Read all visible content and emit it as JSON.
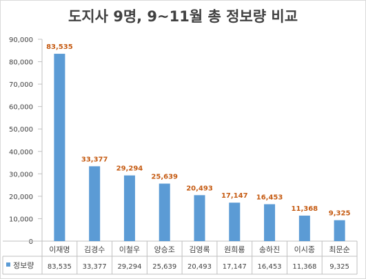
{
  "chart_data": {
    "type": "bar",
    "title": "도지사 9명, 9~11월 총 정보량 비교",
    "categories": [
      "이재명",
      "김경수",
      "이철우",
      "양승조",
      "김영록",
      "원희룡",
      "송하진",
      "이시종",
      "최문순"
    ],
    "series": [
      {
        "name": "정보량",
        "values": [
          83535,
          33377,
          29294,
          25639,
          20493,
          17147,
          16453,
          11368,
          9325
        ],
        "value_labels": [
          "83,535",
          "33,377",
          "29,294",
          "25,639",
          "20,493",
          "17,147",
          "16,453",
          "11,368",
          "9,325"
        ]
      }
    ],
    "ylim": [
      0,
      90000
    ],
    "y_ticks": [
      0,
      10000,
      20000,
      30000,
      40000,
      50000,
      60000,
      70000,
      80000,
      90000
    ],
    "y_tick_labels": [
      "0",
      "10,000",
      "20,000",
      "30,000",
      "40,000",
      "50,000",
      "60,000",
      "70,000",
      "80,000",
      "90,000"
    ],
    "grid": false,
    "legend": "in-table",
    "data_table": true,
    "colors": {
      "bar": "#5b9bd5",
      "value_label": "#c55a11",
      "axis": "#bfbfbf",
      "text": "#404040"
    }
  }
}
